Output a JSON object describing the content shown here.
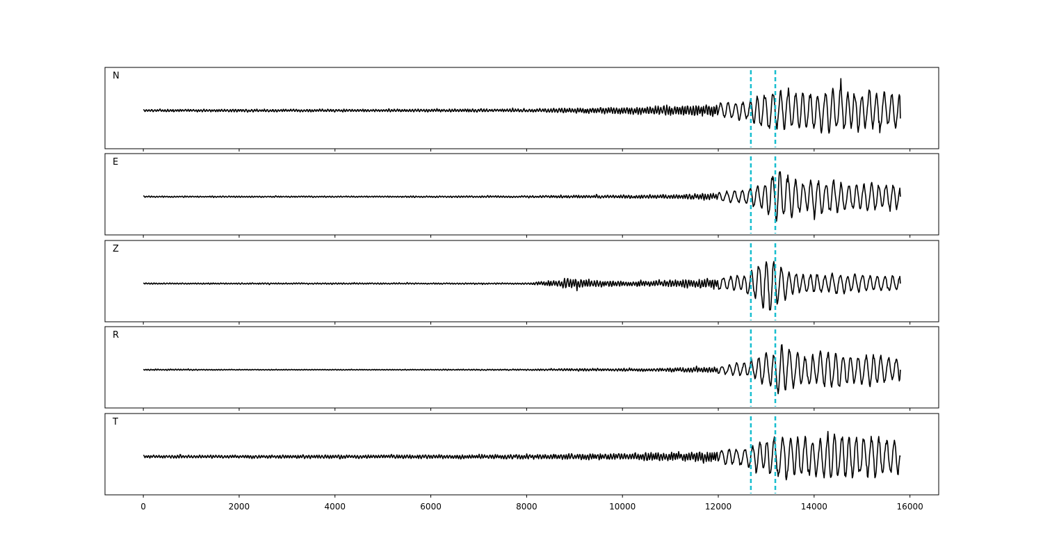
{
  "chart_data": {
    "type": "line",
    "xlim": [
      -800,
      16600
    ],
    "xticks": [
      0,
      2000,
      4000,
      6000,
      8000,
      10000,
      12000,
      14000,
      16000
    ],
    "xtick_labels": [
      "0",
      "2000",
      "4000",
      "6000",
      "8000",
      "10000",
      "12000",
      "14000",
      "16000"
    ],
    "x_range": [
      0,
      15800
    ],
    "grid": false,
    "picks": [
      12680,
      13190
    ],
    "pick_color": "#17becf",
    "trace_color": "#000000",
    "panels": [
      {
        "label": "N",
        "ylim": [
          -1.0,
          1.0
        ],
        "envelope": [
          [
            0,
            0.05
          ],
          [
            2000,
            0.06
          ],
          [
            5000,
            0.06
          ],
          [
            8000,
            0.07
          ],
          [
            9000,
            0.12
          ],
          [
            10000,
            0.16
          ],
          [
            11000,
            0.22
          ],
          [
            12000,
            0.26
          ],
          [
            12600,
            0.32
          ],
          [
            13000,
            0.62
          ],
          [
            13200,
            0.65
          ],
          [
            14000,
            0.62
          ],
          [
            14400,
            0.78
          ],
          [
            15000,
            0.65
          ],
          [
            15800,
            0.58
          ]
        ],
        "bias": -0.05
      },
      {
        "label": "E",
        "ylim": [
          -1.0,
          1.0
        ],
        "envelope": [
          [
            0,
            0.03
          ],
          [
            2000,
            0.03
          ],
          [
            5000,
            0.03
          ],
          [
            8000,
            0.04
          ],
          [
            9000,
            0.06
          ],
          [
            10000,
            0.07
          ],
          [
            11000,
            0.09
          ],
          [
            12000,
            0.15
          ],
          [
            12600,
            0.28
          ],
          [
            13000,
            0.55
          ],
          [
            13200,
            0.85
          ],
          [
            13800,
            0.45
          ],
          [
            14000,
            0.6
          ],
          [
            15000,
            0.45
          ],
          [
            15800,
            0.4
          ]
        ],
        "bias": 0.0
      },
      {
        "label": "Z",
        "ylim": [
          -1.0,
          1.0
        ],
        "envelope": [
          [
            0,
            0.03
          ],
          [
            2000,
            0.03
          ],
          [
            5000,
            0.03
          ],
          [
            8000,
            0.03
          ],
          [
            8800,
            0.2
          ],
          [
            9000,
            0.22
          ],
          [
            9500,
            0.15
          ],
          [
            10000,
            0.12
          ],
          [
            11000,
            0.15
          ],
          [
            12000,
            0.24
          ],
          [
            12600,
            0.3
          ],
          [
            13080,
            0.98
          ],
          [
            13190,
            0.75
          ],
          [
            13500,
            0.35
          ],
          [
            14000,
            0.32
          ],
          [
            15000,
            0.3
          ],
          [
            15800,
            0.25
          ]
        ],
        "bias": 0.0
      },
      {
        "label": "R",
        "ylim": [
          -1.0,
          1.0
        ],
        "envelope": [
          [
            0,
            0.03
          ],
          [
            2000,
            0.02
          ],
          [
            5000,
            0.02
          ],
          [
            8000,
            0.03
          ],
          [
            9000,
            0.05
          ],
          [
            10000,
            0.06
          ],
          [
            11000,
            0.08
          ],
          [
            12000,
            0.14
          ],
          [
            12600,
            0.25
          ],
          [
            13100,
            0.6
          ],
          [
            13200,
            0.8
          ],
          [
            13800,
            0.45
          ],
          [
            14200,
            0.6
          ],
          [
            15000,
            0.5
          ],
          [
            15800,
            0.42
          ]
        ],
        "bias": 0.0
      },
      {
        "label": "T",
        "ylim": [
          -1.0,
          1.0
        ],
        "envelope": [
          [
            0,
            0.06
          ],
          [
            2000,
            0.07
          ],
          [
            5000,
            0.08
          ],
          [
            8000,
            0.1
          ],
          [
            9000,
            0.12
          ],
          [
            10000,
            0.15
          ],
          [
            11000,
            0.2
          ],
          [
            12000,
            0.25
          ],
          [
            12600,
            0.3
          ],
          [
            13000,
            0.6
          ],
          [
            13400,
            0.7
          ],
          [
            14000,
            0.65
          ],
          [
            14400,
            0.9
          ],
          [
            15000,
            0.7
          ],
          [
            15800,
            0.6
          ]
        ],
        "bias": 0.0
      }
    ]
  }
}
